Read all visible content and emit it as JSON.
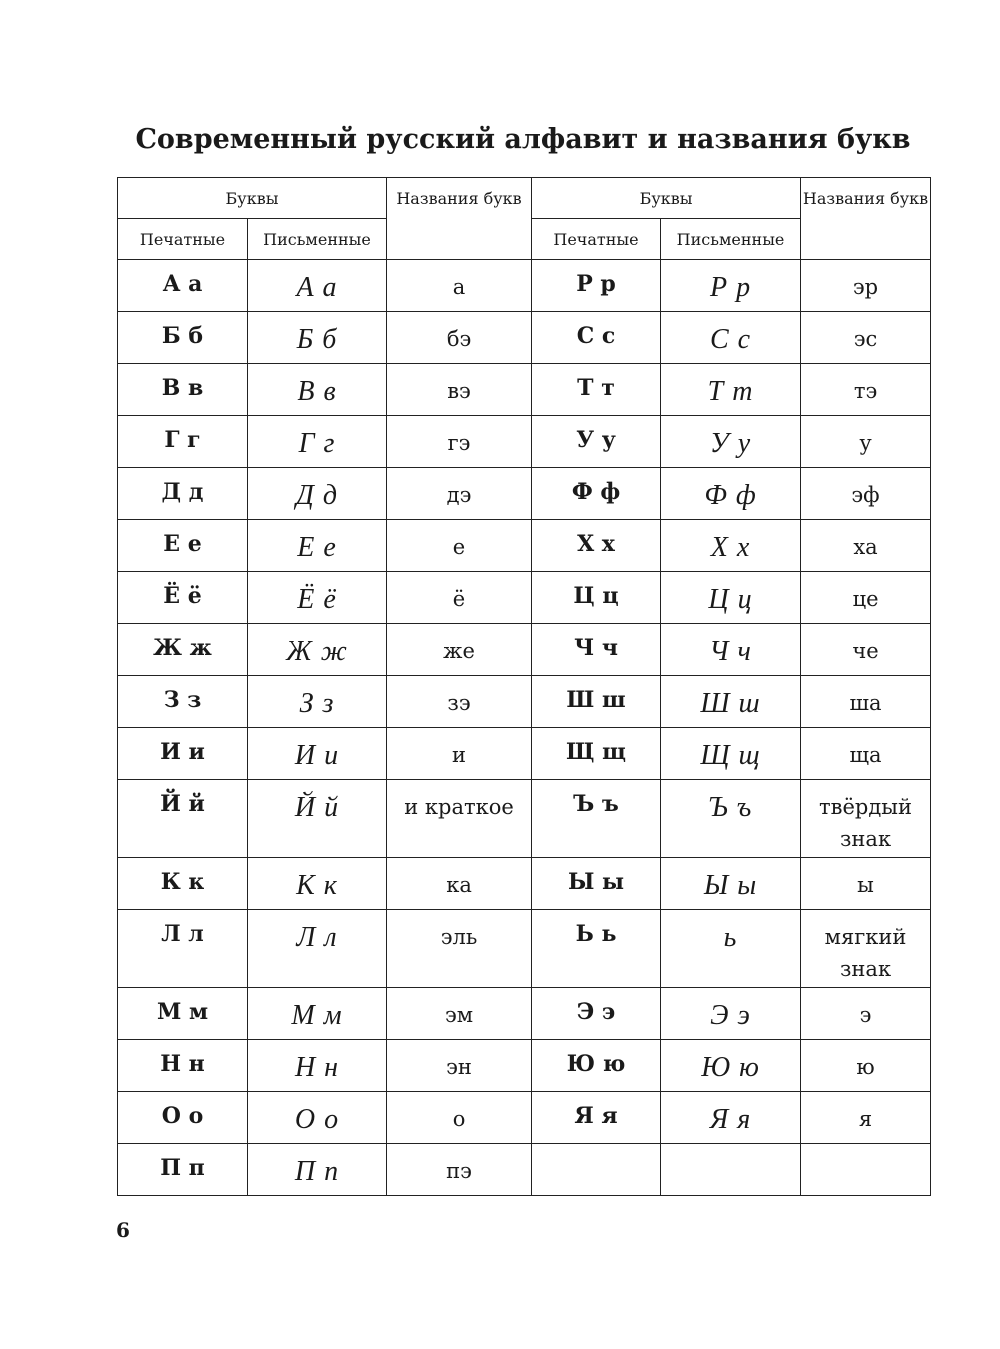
{
  "title": "Современный русский алфавит и названия букв",
  "headers": {
    "letters": "Буквы",
    "names": "Названия букв",
    "printed": "Печатные",
    "written": "Письменные"
  },
  "rows": [
    {
      "left": {
        "printed": "А а",
        "written": "А а",
        "name": "а"
      },
      "right": {
        "printed": "Р р",
        "written": "Р р",
        "name": "эр"
      }
    },
    {
      "left": {
        "printed": "Б б",
        "written": "Б б",
        "name": "бэ"
      },
      "right": {
        "printed": "С с",
        "written": "С с",
        "name": "эс"
      }
    },
    {
      "left": {
        "printed": "В в",
        "written": "В в",
        "name": "вэ"
      },
      "right": {
        "printed": "Т т",
        "written": "Т т",
        "name": "тэ"
      }
    },
    {
      "left": {
        "printed": "Г г",
        "written": "Г г",
        "name": "гэ"
      },
      "right": {
        "printed": "У у",
        "written": "У у",
        "name": "у"
      }
    },
    {
      "left": {
        "printed": "Д д",
        "written": "Д д",
        "name": "дэ"
      },
      "right": {
        "printed": "Ф ф",
        "written": "Ф ф",
        "name": "эф"
      }
    },
    {
      "left": {
        "printed": "Е е",
        "written": "Е е",
        "name": "е"
      },
      "right": {
        "printed": "Х х",
        "written": "Х х",
        "name": "ха"
      }
    },
    {
      "left": {
        "printed": "Ё ё",
        "written": "Ё ё",
        "name": "ё"
      },
      "right": {
        "printed": "Ц ц",
        "written": "Ц ц",
        "name": "це"
      }
    },
    {
      "left": {
        "printed": "Ж ж",
        "written": "Ж ж",
        "name": "же"
      },
      "right": {
        "printed": "Ч ч",
        "written": "Ч ч",
        "name": "че"
      }
    },
    {
      "left": {
        "printed": "З з",
        "written": "З з",
        "name": "зэ"
      },
      "right": {
        "printed": "Ш ш",
        "written": "Ш ш",
        "name": "ша"
      }
    },
    {
      "left": {
        "printed": "И и",
        "written": "И и",
        "name": "и"
      },
      "right": {
        "printed": "Щ щ",
        "written": "Щ щ",
        "name": "ща"
      }
    },
    {
      "left": {
        "printed": "Й й",
        "written": "Й й",
        "name": "и краткое"
      },
      "right": {
        "printed": "Ъ ъ",
        "written": "Ъ ъ",
        "name": "твёрдый знак"
      },
      "double": true
    },
    {
      "left": {
        "printed": "К к",
        "written": "К к",
        "name": "ка"
      },
      "right": {
        "printed": "Ы ы",
        "written": "Ы ы",
        "name": "ы"
      }
    },
    {
      "left": {
        "printed": "Л л",
        "written": "Л л",
        "name": "эль"
      },
      "right": {
        "printed": "Ь ь",
        "written": "ь",
        "name": "мягкий знак"
      },
      "double": true
    },
    {
      "left": {
        "printed": "М м",
        "written": "М м",
        "name": "эм"
      },
      "right": {
        "printed": "Э э",
        "written": "Э э",
        "name": "э"
      }
    },
    {
      "left": {
        "printed": "Н н",
        "written": "Н н",
        "name": "эн"
      },
      "right": {
        "printed": "Ю ю",
        "written": "Ю ю",
        "name": "ю"
      }
    },
    {
      "left": {
        "printed": "О о",
        "written": "О о",
        "name": "о"
      },
      "right": {
        "printed": "Я я",
        "written": "Я я",
        "name": "я"
      }
    },
    {
      "left": {
        "printed": "П п",
        "written": "П п",
        "name": "пэ"
      },
      "right": null
    }
  ],
  "page_number": "6"
}
